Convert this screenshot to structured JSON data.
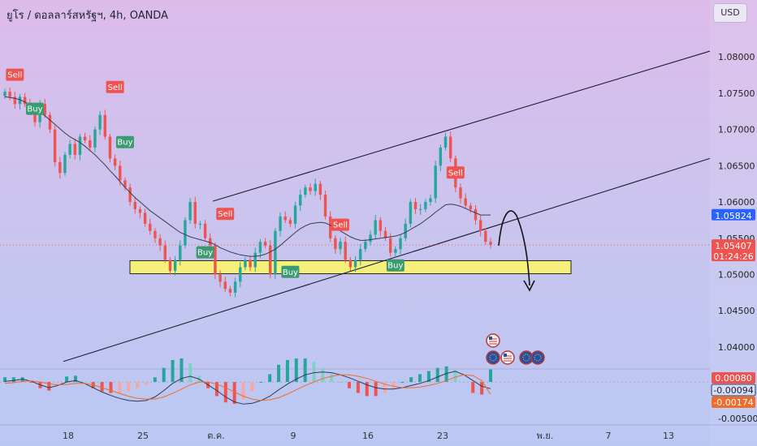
{
  "header": {
    "title": "ยูโร / ดอลลาร์สหรัฐฯ, 4h, OANDA",
    "currency_button": "USD"
  },
  "colors": {
    "up": "#26a69a",
    "down": "#ef5350",
    "zone": "#f5f07a",
    "sell_badge": "#ef5350",
    "buy_badge": "#3a9b70",
    "price_badge": "#2962ff",
    "macd_line": "#2f3a55",
    "signal_line": "#ef6c2a"
  },
  "chart_data": [
    {
      "type": "candlestick",
      "title": "ยูโร / ดอลลาร์สหรัฐฯ, 4h, OANDA",
      "y_ticks": [
        "1.08000",
        "1.07500",
        "1.07000",
        "1.06500",
        "1.06000",
        "1.05500",
        "1.05000",
        "1.04500",
        "1.04000"
      ],
      "ylim": [
        1.0373,
        1.0845
      ],
      "x_ticks": [
        "18",
        "25",
        "ต.ค.",
        "9",
        "16",
        "23",
        "พ.ย.",
        "7",
        "13"
      ],
      "current_price": "1.05407",
      "countdown": "01:24:26",
      "moving_average_label": "1.05824",
      "signals": [
        {
          "label": "Sell",
          "type": "sell",
          "price": 1.0775
        },
        {
          "label": "Buy",
          "type": "buy",
          "price": 1.0728
        },
        {
          "label": "Sell",
          "type": "sell",
          "price": 1.0758
        },
        {
          "label": "Buy",
          "type": "buy",
          "price": 1.0682
        },
        {
          "label": "Sell",
          "type": "sell",
          "price": 1.0583
        },
        {
          "label": "Buy",
          "type": "buy",
          "price": 1.053
        },
        {
          "label": "Buy",
          "type": "buy",
          "price": 1.0503
        },
        {
          "label": "Sell",
          "type": "sell",
          "price": 1.0568
        },
        {
          "label": "Buy",
          "type": "buy",
          "price": 1.0512
        },
        {
          "label": "Sell",
          "type": "sell",
          "price": 1.064
        }
      ],
      "support_zone": [
        1.0501,
        1.0519
      ],
      "close_path": [
        1.0752,
        1.0745,
        1.0735,
        1.0745,
        1.0735,
        1.0725,
        1.071,
        1.0735,
        1.072,
        1.07,
        1.0655,
        1.064,
        1.0665,
        1.068,
        1.0665,
        1.069,
        1.0685,
        1.0675,
        1.07,
        1.072,
        1.069,
        1.066,
        1.065,
        1.063,
        1.062,
        1.06,
        1.059,
        1.0585,
        1.057,
        1.056,
        1.055,
        1.054,
        1.052,
        1.0505,
        1.052,
        1.054,
        1.0575,
        1.06,
        1.057,
        1.057,
        1.055,
        1.054,
        1.05,
        1.049,
        1.048,
        1.0475,
        1.049,
        1.051,
        1.052,
        1.051,
        1.053,
        1.0545,
        1.054,
        1.05,
        1.056,
        1.058,
        1.0575,
        1.057,
        1.0595,
        1.061,
        1.062,
        1.0615,
        1.0625,
        1.061,
        1.058,
        1.055,
        1.0535,
        1.0545,
        1.052,
        1.051,
        1.052,
        1.0535,
        1.0545,
        1.0555,
        1.0575,
        1.056,
        1.055,
        1.053,
        1.0535,
        1.055,
        1.057,
        1.06,
        1.059,
        1.059,
        1.06,
        1.0605,
        1.065,
        1.0675,
        1.069,
        1.066,
        1.062,
        1.0605,
        1.0595,
        1.059,
        1.0575,
        1.056,
        1.0545,
        1.0541
      ],
      "moving_average": [
        1.0745,
        1.0744,
        1.0743,
        1.0741,
        1.0738,
        1.0734,
        1.0729,
        1.0724,
        1.0719,
        1.0713,
        1.0707,
        1.0701,
        1.0695,
        1.069,
        1.0686,
        1.0682,
        1.0677,
        1.0671,
        1.0665,
        1.0658,
        1.0651,
        1.0643,
        1.0636,
        1.0628,
        1.062,
        1.0613,
        1.0606,
        1.06,
        1.0594,
        1.0588,
        1.0583,
        1.0578,
        1.0573,
        1.0568,
        1.0563,
        1.0558,
        1.0555,
        1.0552,
        1.055,
        1.0548,
        1.0546,
        1.0544,
        1.0541,
        1.0537,
        1.0534,
        1.0531,
        1.0529,
        1.0527,
        1.0526,
        1.0525,
        1.0525,
        1.0526,
        1.0528,
        1.0531,
        1.0535,
        1.054,
        1.0546,
        1.0552,
        1.0558,
        1.0563,
        1.0567,
        1.057,
        1.0571,
        1.0572,
        1.0571,
        1.0568,
        1.0564,
        1.056,
        1.0556,
        1.0552,
        1.0549,
        1.0547,
        1.0547,
        1.0548,
        1.0549,
        1.055,
        1.0551,
        1.0552,
        1.0553,
        1.0555,
        1.0558,
        1.0562,
        1.0566,
        1.057,
        1.0575,
        1.058,
        1.0586,
        1.0591,
        1.0596,
        1.0597,
        1.0596,
        1.0594,
        1.0591,
        1.0588,
        1.0585,
        1.0582,
        1.0582,
        1.0582
      ]
    },
    {
      "type": "macd",
      "y_ticks": [
        "0.00080",
        "-0.00094",
        "-0.00174",
        "-0.00500"
      ],
      "value_labels": [
        {
          "label": "0.00080",
          "color": "#ef5350"
        },
        {
          "label": "-0.00094",
          "color": "#2f3a55"
        },
        {
          "label": "-0.00174",
          "color": "#ef6c2a"
        }
      ],
      "ylim": [
        -0.0058,
        0.0016
      ],
      "macd": [
        0.0001,
        0.0002,
        0.0004,
        0.0001,
        -0.0004,
        -0.0008,
        -0.0005,
        0.0,
        0.0002,
        -0.0002,
        -0.0008,
        -0.0014,
        -0.0019,
        -0.0023,
        -0.0026,
        -0.0027,
        -0.0026,
        -0.0021,
        -0.0012,
        -0.0002,
        0.0005,
        0.0008,
        0.0004,
        -0.0004,
        -0.0012,
        -0.0021,
        -0.0028,
        -0.0031,
        -0.003,
        -0.0026,
        -0.002,
        -0.0011,
        -0.0003,
        0.0004,
        0.001,
        0.0013,
        0.0014,
        0.0013,
        0.001,
        0.0006,
        0.0001,
        -0.0004,
        -0.0008,
        -0.001,
        -0.001,
        -0.0008,
        -0.0005,
        -0.0002,
        0.0002,
        0.0007,
        0.0012,
        0.0015,
        0.001,
        0.0002,
        -0.0006,
        -0.00094
      ],
      "signal": [
        -0.0002,
        -0.0001,
        0.0001,
        0.00015,
        0.0,
        -0.00025,
        -0.0004,
        -0.00035,
        -0.0002,
        -0.0002,
        -0.0004,
        -0.0008,
        -0.0012,
        -0.0016,
        -0.002,
        -0.0023,
        -0.0024,
        -0.0024,
        -0.0021,
        -0.0016,
        -0.001,
        -0.0004,
        0.0,
        0.0,
        -0.0003,
        -0.0008,
        -0.0014,
        -0.002,
        -0.0024,
        -0.0026,
        -0.0025,
        -0.0022,
        -0.0017,
        -0.0011,
        -0.0005,
        0.0,
        0.0005,
        0.0008,
        0.001,
        0.001,
        0.0008,
        0.0005,
        0.0001,
        -0.0003,
        -0.0006,
        -0.0008,
        -0.0008,
        -0.0007,
        -0.0005,
        -0.0002,
        0.0002,
        0.0007,
        0.001,
        0.0009,
        0.0002,
        -0.00174
      ]
    }
  ]
}
